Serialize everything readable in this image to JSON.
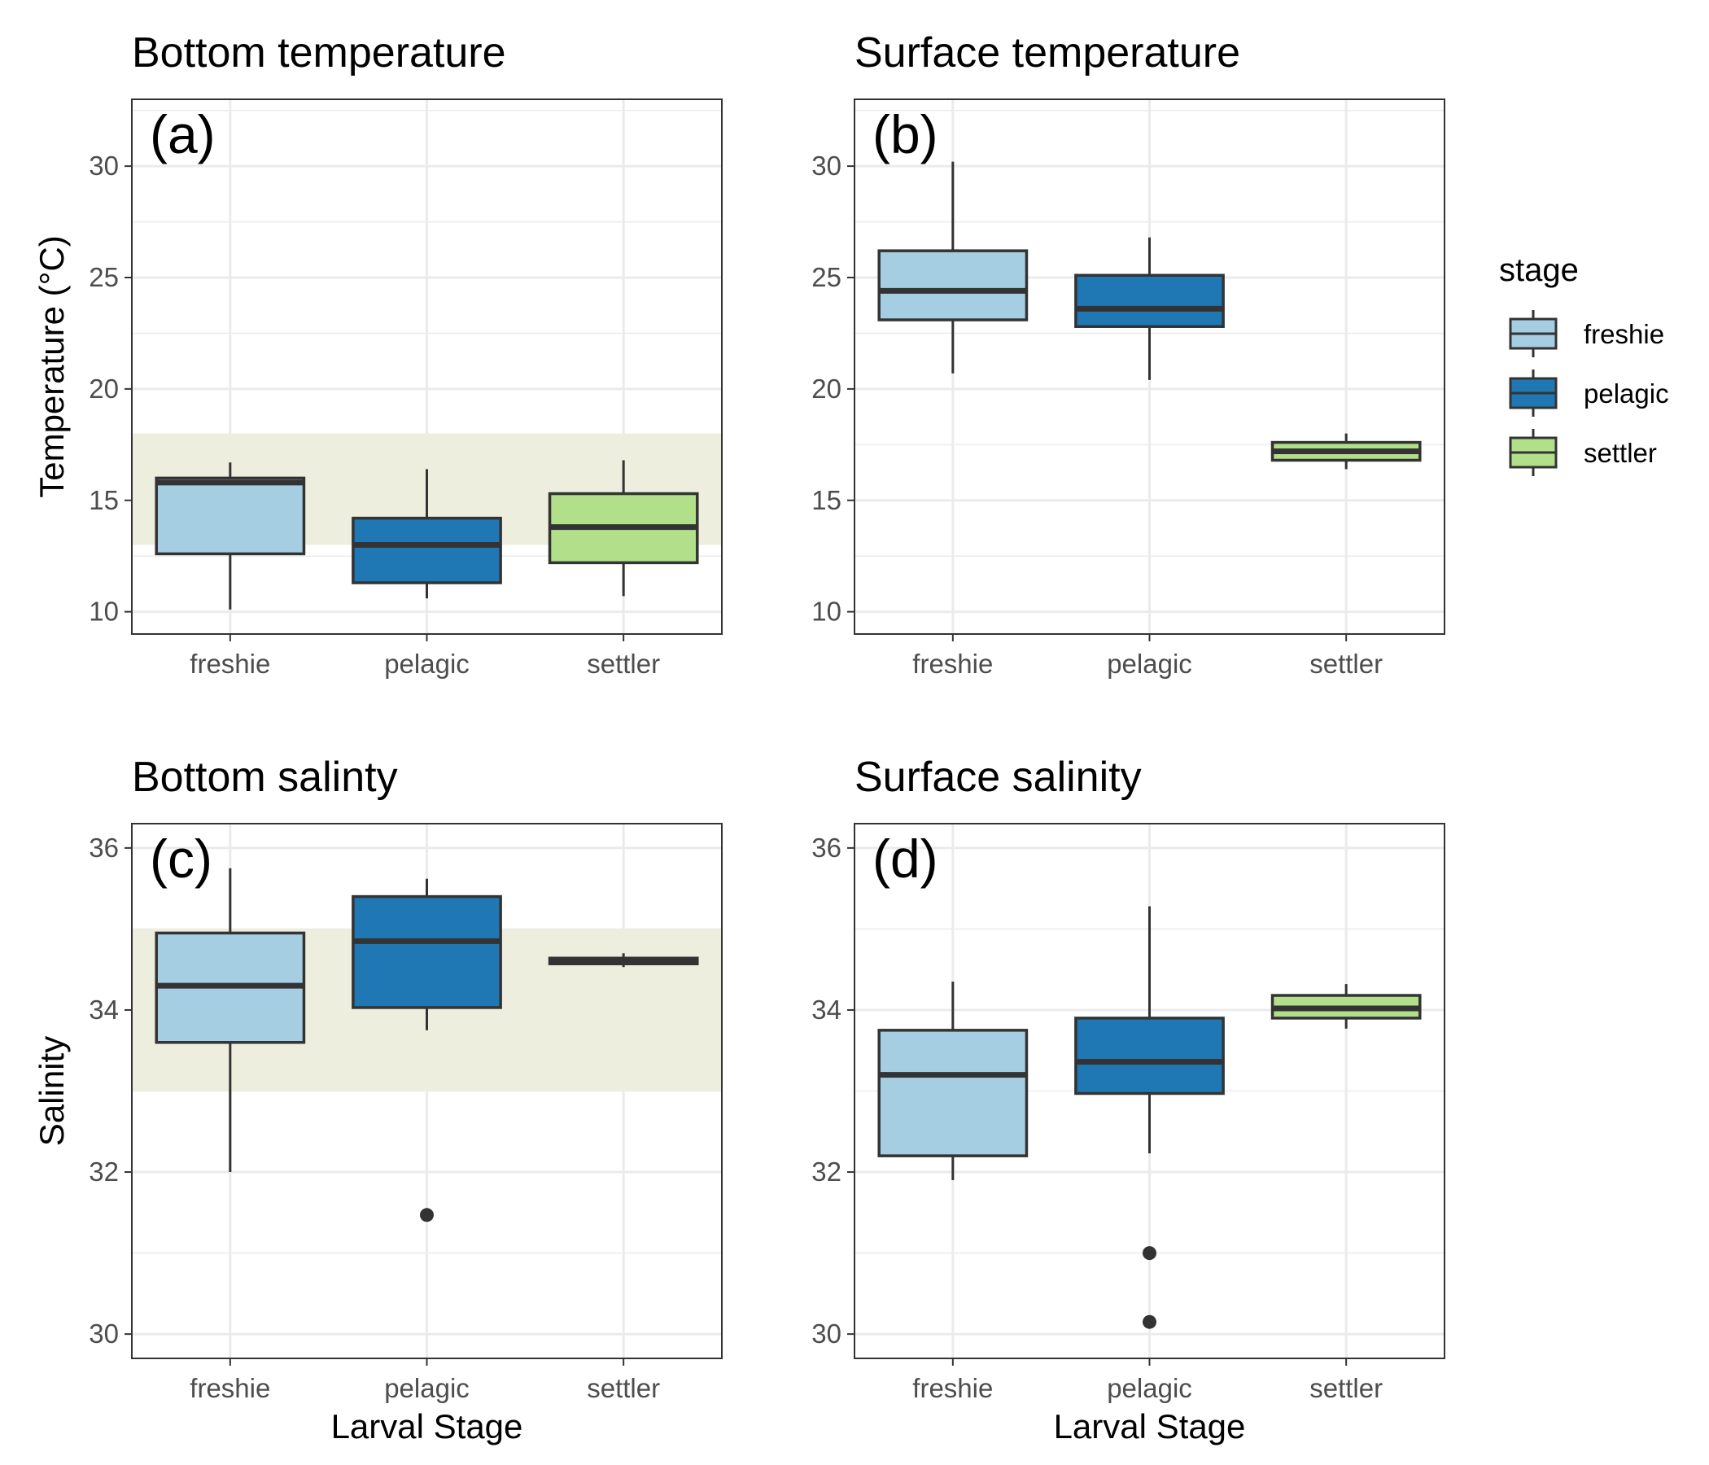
{
  "chart_data": [
    {
      "type": "box",
      "title": "Bottom temperature",
      "tag": "(a)",
      "xlabel": "",
      "ylabel": "Temperature (°C)",
      "categories": [
        "freshie",
        "pelagic",
        "settler"
      ],
      "ylim": [
        9,
        33
      ],
      "yticks": [
        10,
        15,
        20,
        25,
        30
      ],
      "ytick_labels": [
        "10",
        "15",
        "20",
        "25",
        "30"
      ],
      "grid": true,
      "reference_band": [
        13,
        18
      ],
      "boxes": [
        {
          "stage": "freshie",
          "whisker_low": 10.1,
          "q1": 12.6,
          "median": 15.8,
          "q3": 16.0,
          "whisker_high": 16.7,
          "outliers": []
        },
        {
          "stage": "pelagic",
          "whisker_low": 10.6,
          "q1": 11.3,
          "median": 13.0,
          "q3": 14.2,
          "whisker_high": 16.4,
          "outliers": []
        },
        {
          "stage": "settler",
          "whisker_low": 10.7,
          "q1": 12.2,
          "median": 13.8,
          "q3": 15.3,
          "whisker_high": 16.8,
          "outliers": []
        }
      ]
    },
    {
      "type": "box",
      "title": "Surface temperature",
      "tag": "(b)",
      "xlabel": "",
      "ylabel": "",
      "categories": [
        "freshie",
        "pelagic",
        "settler"
      ],
      "ylim": [
        9,
        33
      ],
      "yticks": [
        10,
        15,
        20,
        25,
        30
      ],
      "ytick_labels": [
        "10",
        "15",
        "20",
        "25",
        "30"
      ],
      "grid": true,
      "reference_band": null,
      "boxes": [
        {
          "stage": "freshie",
          "whisker_low": 20.7,
          "q1": 23.1,
          "median": 24.4,
          "q3": 26.2,
          "whisker_high": 30.2,
          "outliers": []
        },
        {
          "stage": "pelagic",
          "whisker_low": 20.4,
          "q1": 22.8,
          "median": 23.6,
          "q3": 25.1,
          "whisker_high": 26.8,
          "outliers": []
        },
        {
          "stage": "settler",
          "whisker_low": 16.4,
          "q1": 16.8,
          "median": 17.2,
          "q3": 17.6,
          "whisker_high": 18.0,
          "outliers": []
        }
      ]
    },
    {
      "type": "box",
      "title": "Bottom salinty",
      "tag": "(c)",
      "xlabel": "Larval Stage",
      "ylabel": "Salinity",
      "categories": [
        "freshie",
        "pelagic",
        "settler"
      ],
      "ylim": [
        29.7,
        36.3
      ],
      "yticks": [
        30,
        32,
        34,
        36
      ],
      "ytick_labels": [
        "30",
        "32",
        "34",
        "36"
      ],
      "grid": true,
      "reference_band": [
        33,
        35
      ],
      "boxes": [
        {
          "stage": "freshie",
          "whisker_low": 32.0,
          "q1": 33.6,
          "median": 34.3,
          "q3": 34.95,
          "whisker_high": 35.75,
          "outliers": []
        },
        {
          "stage": "pelagic",
          "whisker_low": 33.75,
          "q1": 34.03,
          "median": 34.85,
          "q3": 35.4,
          "whisker_high": 35.62,
          "outliers": [
            31.47
          ]
        },
        {
          "stage": "settler",
          "whisker_low": 34.53,
          "q1": 34.57,
          "median": 34.6,
          "q3": 34.64,
          "whisker_high": 34.7,
          "outliers": []
        }
      ]
    },
    {
      "type": "box",
      "title": "Surface salinity",
      "tag": "(d)",
      "xlabel": "Larval Stage",
      "ylabel": "",
      "categories": [
        "freshie",
        "pelagic",
        "settler"
      ],
      "ylim": [
        29.7,
        36.3
      ],
      "yticks": [
        30,
        32,
        34,
        36
      ],
      "ytick_labels": [
        "30",
        "32",
        "34",
        "36"
      ],
      "grid": true,
      "reference_band": null,
      "boxes": [
        {
          "stage": "freshie",
          "whisker_low": 31.9,
          "q1": 32.2,
          "median": 33.2,
          "q3": 33.75,
          "whisker_high": 34.35,
          "outliers": []
        },
        {
          "stage": "pelagic",
          "whisker_low": 32.23,
          "q1": 32.97,
          "median": 33.36,
          "q3": 33.9,
          "whisker_high": 35.28,
          "outliers": [
            31.0,
            30.15
          ]
        },
        {
          "stage": "settler",
          "whisker_low": 33.77,
          "q1": 33.9,
          "median": 34.02,
          "q3": 34.18,
          "whisker_high": 34.32,
          "outliers": []
        }
      ]
    }
  ],
  "legend": {
    "title": "stage",
    "placement": "right",
    "items": [
      {
        "label": "freshie",
        "color": "#a6cee3"
      },
      {
        "label": "pelagic",
        "color": "#1f78b4"
      },
      {
        "label": "settler",
        "color": "#b2df8a"
      }
    ]
  },
  "colors": {
    "freshie": "#a6cee3",
    "pelagic": "#1f78b4",
    "settler": "#b2df8a",
    "band": "#eeeedf",
    "box_outline": "#333333",
    "grid": "#ebebeb",
    "panel_border": "#333333"
  }
}
